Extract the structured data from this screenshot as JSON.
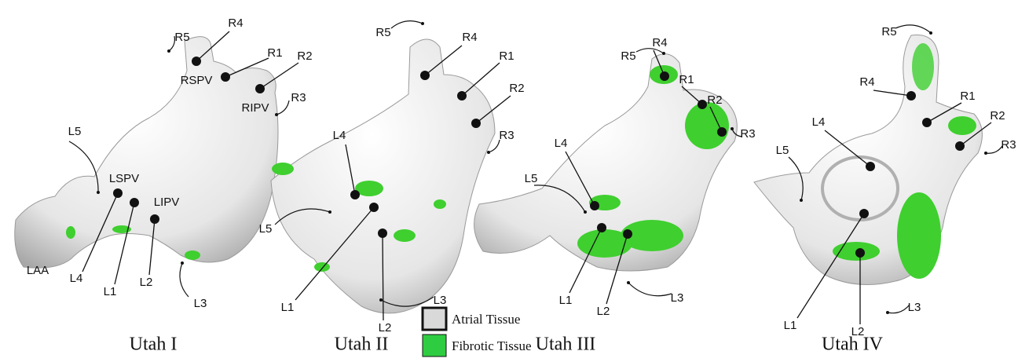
{
  "panels": [
    {
      "title": "Utah I",
      "labels": [
        "R5",
        "R4",
        "R1",
        "R2",
        "RSPV",
        "RIPV",
        "R3",
        "L5",
        "LSPV",
        "LIPV",
        "LAA",
        "L4",
        "L1",
        "L2",
        "L3"
      ]
    },
    {
      "title": "Utah II",
      "labels": [
        "R5",
        "R4",
        "R1",
        "R2",
        "R3",
        "L4",
        "L5",
        "L1",
        "L3",
        "L2"
      ]
    },
    {
      "title": "Utah III",
      "labels": [
        "R5",
        "R4",
        "R1",
        "R2",
        "R3",
        "L4",
        "L5",
        "L1",
        "L2",
        "L3"
      ]
    },
    {
      "title": "Utah IV",
      "labels": [
        "R5",
        "R4",
        "R1",
        "R2",
        "R3",
        "L4",
        "L5",
        "L1",
        "L2",
        "L3"
      ]
    }
  ],
  "legend": [
    {
      "label": "Atrial Tissue"
    },
    {
      "label": "Fibrotic Tissue"
    }
  ]
}
